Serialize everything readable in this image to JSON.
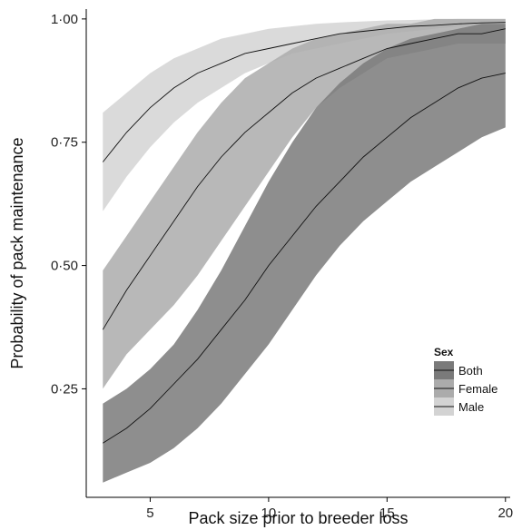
{
  "chart_data": {
    "type": "line",
    "title": "",
    "xlabel": "Pack size prior to breeder loss",
    "ylabel": "Probability of pack maintenance",
    "xlim": [
      2.3,
      20.2
    ],
    "ylim": [
      0.03,
      1.02
    ],
    "x_ticks": [
      5,
      10,
      15,
      20
    ],
    "x_tick_labels": [
      "5",
      "10",
      "15",
      "20"
    ],
    "y_ticks": [
      0.25,
      0.5,
      0.75,
      1.0
    ],
    "y_tick_labels": [
      "0·25",
      "0·50",
      "0·75",
      "1·00"
    ],
    "grid": false,
    "legend": {
      "title": "Sex",
      "position": "bottom-right",
      "entries": [
        "Both",
        "Female",
        "Male"
      ]
    },
    "x": [
      3,
      4,
      5,
      6,
      7,
      8,
      9,
      10,
      11,
      12,
      13,
      14,
      15,
      16,
      17,
      18,
      19,
      20
    ],
    "series": [
      {
        "name": "Both",
        "fill_color": "#7a7a7a",
        "values": [
          0.14,
          0.17,
          0.21,
          0.26,
          0.31,
          0.37,
          0.43,
          0.5,
          0.56,
          0.62,
          0.67,
          0.72,
          0.76,
          0.8,
          0.83,
          0.86,
          0.88,
          0.89
        ],
        "lower": [
          0.06,
          0.08,
          0.1,
          0.13,
          0.17,
          0.22,
          0.28,
          0.34,
          0.41,
          0.48,
          0.54,
          0.59,
          0.63,
          0.67,
          0.7,
          0.73,
          0.76,
          0.78
        ],
        "upper": [
          0.22,
          0.25,
          0.29,
          0.34,
          0.41,
          0.49,
          0.58,
          0.67,
          0.75,
          0.82,
          0.87,
          0.91,
          0.94,
          0.96,
          0.97,
          0.98,
          0.99,
          0.99
        ]
      },
      {
        "name": "Female",
        "fill_color": "#ababab",
        "values": [
          0.37,
          0.45,
          0.52,
          0.59,
          0.66,
          0.72,
          0.77,
          0.81,
          0.85,
          0.88,
          0.9,
          0.92,
          0.94,
          0.95,
          0.96,
          0.97,
          0.97,
          0.98
        ],
        "lower": [
          0.25,
          0.32,
          0.37,
          0.42,
          0.48,
          0.55,
          0.62,
          0.69,
          0.76,
          0.82,
          0.86,
          0.89,
          0.92,
          0.93,
          0.94,
          0.95,
          0.95,
          0.95
        ],
        "upper": [
          0.49,
          0.56,
          0.63,
          0.7,
          0.77,
          0.83,
          0.88,
          0.91,
          0.94,
          0.96,
          0.97,
          0.98,
          0.99,
          0.99,
          1.0,
          1.0,
          1.0,
          1.0
        ]
      },
      {
        "name": "Male",
        "fill_color": "#d3d3d3",
        "values": [
          0.71,
          0.77,
          0.82,
          0.86,
          0.89,
          0.91,
          0.93,
          0.94,
          0.95,
          0.96,
          0.97,
          0.975,
          0.98,
          0.985,
          0.987,
          0.99,
          0.992,
          0.993
        ],
        "lower": [
          0.61,
          0.68,
          0.74,
          0.79,
          0.83,
          0.86,
          0.89,
          0.91,
          0.93,
          0.94,
          0.95,
          0.96,
          0.97,
          0.975,
          0.98,
          0.985,
          0.99,
          0.99
        ],
        "upper": [
          0.81,
          0.85,
          0.89,
          0.92,
          0.94,
          0.96,
          0.97,
          0.98,
          0.985,
          0.99,
          0.993,
          0.995,
          0.997,
          0.998,
          0.999,
          1.0,
          1.0,
          1.0
        ]
      }
    ]
  }
}
